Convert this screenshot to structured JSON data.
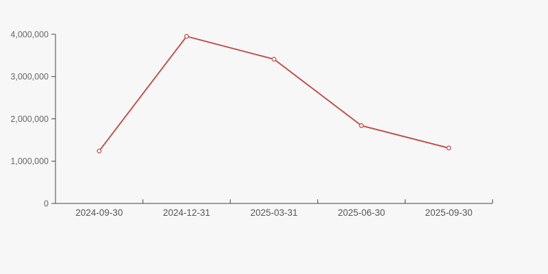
{
  "chart_data": {
    "type": "line",
    "title": "",
    "xlabel": "",
    "ylabel": "",
    "categories": [
      "2024-09-30",
      "2024-12-31",
      "2025-03-31",
      "2025-06-30",
      "2025-09-30"
    ],
    "series": [
      {
        "name": "value",
        "values": [
          1240000,
          3950000,
          3410000,
          1840000,
          1310000
        ]
      }
    ],
    "y_tick_labels": [
      "0",
      "1,000,000",
      "2,000,000",
      "3,000,000",
      "4,000,000"
    ],
    "ylim": [
      0,
      4000000
    ],
    "grid": false,
    "legend": "none",
    "marker": "open-circle",
    "colors": {
      "line": "#c3514d",
      "marker_fill": "#fdfcfc",
      "background": "#f7f7f7",
      "axis": "#444444",
      "y_label": "#666666",
      "x_label": "#555555"
    }
  }
}
